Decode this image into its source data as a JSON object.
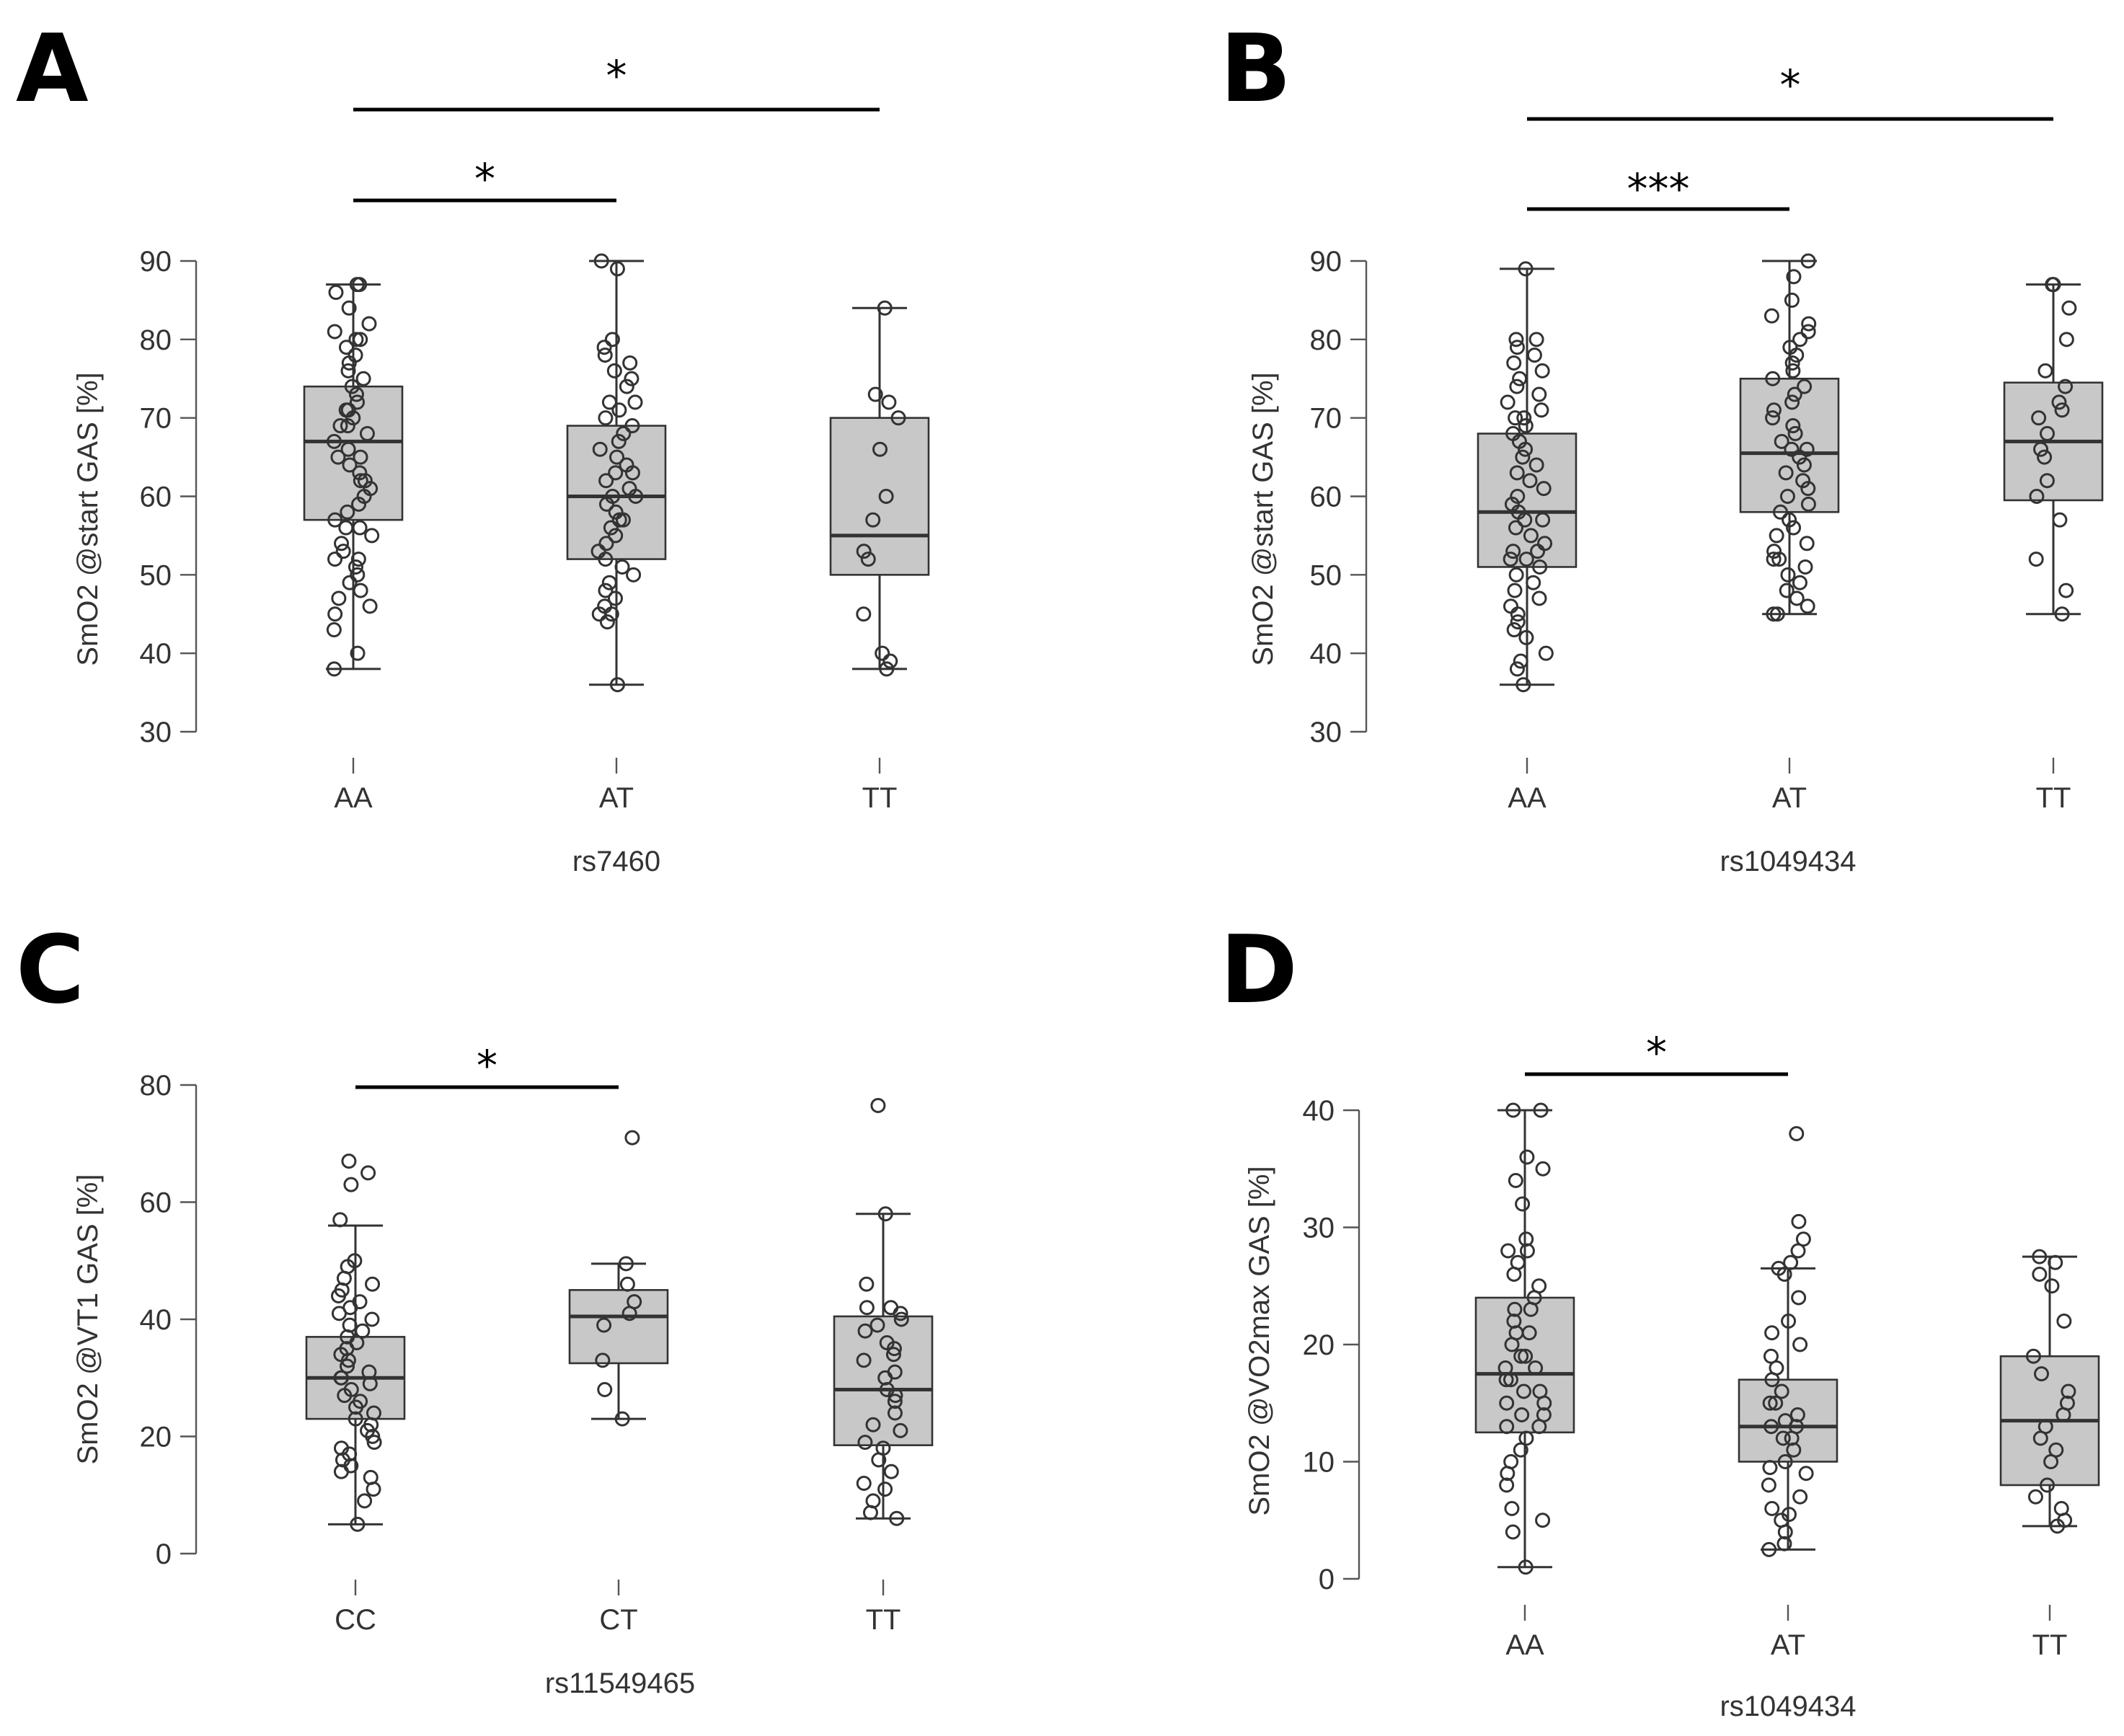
{
  "panels": [
    {
      "letter": "A",
      "ylabel": "SmO2 @start GAS [%]",
      "xlabel": "rs7460"
    },
    {
      "letter": "B",
      "ylabel": "SmO2 @start GAS [%]",
      "xlabel": "rs1049434"
    },
    {
      "letter": "C",
      "ylabel": "SmO2 @VT1 GAS [%]",
      "xlabel": "rs11549465"
    },
    {
      "letter": "D",
      "ylabel": "SmO2 @VO2max GAS [%]",
      "xlabel": "rs1049434"
    }
  ],
  "chart_data": [
    {
      "type": "box",
      "panel": "A",
      "ylabel": "SmO2 @start GAS [%]",
      "xlabel": "rs7460",
      "yticks": [
        30,
        40,
        50,
        60,
        70,
        80,
        90
      ],
      "ylim": [
        30,
        90
      ],
      "categories": [
        "AA",
        "AT",
        "TT"
      ],
      "boxes": [
        {
          "category": "AA",
          "min": 38,
          "q1": 57,
          "median": 67,
          "q3": 74,
          "max": 87,
          "points": [
            87,
            87,
            86,
            84,
            82,
            81,
            80,
            80,
            79,
            78,
            77,
            76,
            75,
            74,
            73,
            72,
            71,
            71,
            70,
            69,
            69,
            68,
            67,
            66,
            65,
            65,
            64,
            63,
            62,
            62,
            61,
            60,
            59,
            58,
            57,
            56,
            56,
            55,
            54,
            53,
            52,
            52,
            51,
            50,
            49,
            48,
            47,
            46,
            45,
            43,
            40,
            38
          ]
        },
        {
          "category": "AT",
          "min": 36,
          "q1": 52,
          "median": 60,
          "q3": 69,
          "max": 90,
          "points": [
            90,
            89,
            80,
            79,
            78,
            77,
            76,
            75,
            74,
            72,
            72,
            71,
            70,
            69,
            68,
            67,
            66,
            65,
            64,
            63,
            63,
            62,
            61,
            60,
            60,
            59,
            58,
            57,
            57,
            56,
            55,
            54,
            53,
            52,
            51,
            50,
            49,
            48,
            47,
            46,
            45,
            45,
            44,
            36
          ]
        },
        {
          "category": "TT",
          "min": 38,
          "q1": 50,
          "median": 55,
          "q3": 70,
          "max": 84,
          "points": [
            84,
            73,
            72,
            70,
            66,
            60,
            57,
            53,
            52,
            45,
            40,
            39,
            38
          ]
        }
      ],
      "significance": [
        {
          "from": "AA",
          "to": "AT",
          "label": "*"
        },
        {
          "from": "AA",
          "to": "TT",
          "label": "*"
        }
      ]
    },
    {
      "type": "box",
      "panel": "B",
      "ylabel": "SmO2 @start GAS [%]",
      "xlabel": "rs1049434",
      "yticks": [
        30,
        40,
        50,
        60,
        70,
        80,
        90
      ],
      "ylim": [
        30,
        90
      ],
      "categories": [
        "AA",
        "AT",
        "TT"
      ],
      "boxes": [
        {
          "category": "AA",
          "min": 36,
          "q1": 51,
          "median": 58,
          "q3": 68,
          "max": 89,
          "points": [
            89,
            80,
            80,
            79,
            78,
            77,
            76,
            75,
            74,
            73,
            72,
            71,
            70,
            70,
            69,
            68,
            67,
            66,
            65,
            64,
            63,
            62,
            61,
            60,
            59,
            58,
            57,
            57,
            56,
            55,
            54,
            53,
            53,
            52,
            52,
            51,
            50,
            49,
            48,
            47,
            46,
            45,
            44,
            43,
            42,
            40,
            39,
            38,
            36
          ]
        },
        {
          "category": "AT",
          "min": 45,
          "q1": 58,
          "median": 65.5,
          "q3": 75,
          "max": 90,
          "points": [
            90,
            88,
            85,
            83,
            82,
            81,
            80,
            79,
            78,
            77,
            76,
            75,
            74,
            73,
            72,
            71,
            70,
            69,
            68,
            67,
            66,
            66,
            65,
            64,
            63,
            62,
            61,
            60,
            59,
            58,
            57,
            56,
            55,
            54,
            53,
            52,
            52,
            51,
            50,
            49,
            48,
            47,
            46,
            45,
            45
          ]
        },
        {
          "category": "TT",
          "min": 45,
          "q1": 59.5,
          "median": 67,
          "q3": 74.5,
          "max": 87,
          "points": [
            87,
            87,
            84,
            80,
            76,
            74,
            72,
            71,
            70,
            68,
            66,
            65,
            62,
            60,
            57,
            52,
            48,
            45
          ]
        }
      ],
      "significance": [
        {
          "from": "AA",
          "to": "AT",
          "label": "***"
        },
        {
          "from": "AA",
          "to": "TT",
          "label": "*"
        }
      ]
    },
    {
      "type": "box",
      "panel": "C",
      "ylabel": "SmO2 @VT1 GAS [%]",
      "xlabel": "rs11549465",
      "yticks": [
        0,
        20,
        40,
        60,
        80
      ],
      "ylim": [
        0,
        80
      ],
      "categories": [
        "CC",
        "CT",
        "TT"
      ],
      "boxes": [
        {
          "category": "CC",
          "min": 5,
          "q1": 23,
          "median": 30,
          "q3": 37,
          "max": 56,
          "points": [
            67,
            65,
            63,
            57,
            50,
            49,
            47,
            46,
            45,
            44,
            43,
            42,
            41,
            40,
            39,
            38,
            37,
            36,
            35,
            34,
            33,
            32,
            31,
            30,
            30,
            29,
            28,
            27,
            26,
            25,
            24,
            23,
            22,
            21,
            20,
            19,
            18,
            17,
            16,
            15,
            14,
            13,
            11,
            9,
            5
          ]
        },
        {
          "category": "CT",
          "min": 23,
          "q1": 32.5,
          "median": 40.5,
          "q3": 45,
          "max": 49.5,
          "points": [
            71,
            49.5,
            46,
            43,
            41,
            39,
            33,
            28,
            23
          ]
        },
        {
          "category": "TT",
          "min": 6,
          "q1": 18.5,
          "median": 28,
          "q3": 40.5,
          "max": 58,
          "points": [
            76.5,
            58,
            46,
            42,
            42,
            41,
            40,
            39,
            38,
            36,
            35,
            34,
            33,
            31,
            30,
            28,
            27,
            26,
            24,
            22,
            21,
            19,
            18,
            16,
            14,
            12,
            11,
            9,
            7,
            6
          ]
        }
      ],
      "significance": [
        {
          "from": "CC",
          "to": "CT",
          "label": "*"
        }
      ]
    },
    {
      "type": "box",
      "panel": "D",
      "ylabel": "SmO2 @VO2max GAS [%]",
      "xlabel": "rs1049434",
      "yticks": [
        0,
        10,
        20,
        30,
        40
      ],
      "ylim": [
        0,
        40
      ],
      "categories": [
        "AA",
        "AT",
        "TT"
      ],
      "boxes": [
        {
          "category": "AA",
          "min": 1,
          "q1": 12.5,
          "median": 17.5,
          "q3": 24,
          "max": 40,
          "points": [
            40,
            40,
            36,
            35,
            34,
            32,
            29,
            28,
            28,
            27,
            26,
            25,
            24,
            23,
            23,
            22,
            21,
            21,
            20,
            19,
            19,
            18,
            18,
            17,
            17,
            16,
            16,
            15,
            15,
            14,
            14,
            13,
            13,
            12,
            11,
            10,
            9,
            8,
            6,
            5,
            4,
            1
          ]
        },
        {
          "category": "AT",
          "min": 2.5,
          "q1": 10,
          "median": 13,
          "q3": 17,
          "max": 26.5,
          "points": [
            38,
            30.5,
            29,
            28,
            27,
            26.5,
            26,
            24,
            22,
            21,
            20,
            19,
            18,
            17,
            16,
            15,
            15,
            14,
            13.5,
            13,
            13,
            12,
            12,
            11,
            10,
            9.5,
            9,
            8,
            7,
            6,
            5.5,
            5,
            4,
            3,
            2.5
          ]
        },
        {
          "category": "TT",
          "min": 4.5,
          "q1": 8,
          "median": 13.5,
          "q3": 19,
          "max": 27.5,
          "points": [
            27.5,
            27,
            26,
            25,
            22,
            19,
            17.5,
            16,
            15,
            14,
            13,
            12,
            11,
            10,
            8,
            7,
            6,
            5,
            4.5
          ]
        }
      ],
      "significance": [
        {
          "from": "AA",
          "to": "AT",
          "label": "*"
        }
      ]
    }
  ]
}
